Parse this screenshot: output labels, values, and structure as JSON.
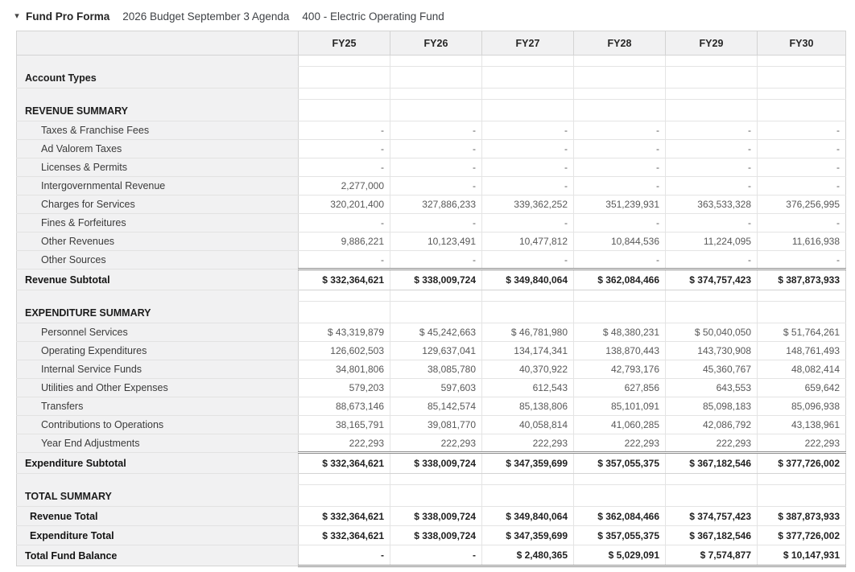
{
  "header": {
    "collapse_icon": "caret-down",
    "title": "Fund Pro Forma",
    "budget_name": "2026 Budget September 3 Agenda",
    "fund_name": "400 - Electric Operating Fund"
  },
  "colors": {
    "header_bg": "#f1f1f2",
    "grid_line_soft": "#e4e4e4",
    "grid_line_faint": "#e2e2e2",
    "grid_line_mid": "#d3d3d3",
    "double_line": "#8f8f8f"
  },
  "table": {
    "columns": [
      "FY25",
      "FY26",
      "FY27",
      "FY28",
      "FY29",
      "FY30"
    ],
    "rows": [
      {
        "type": "spacer",
        "label": "",
        "values": [
          "",
          "",
          "",
          "",
          "",
          ""
        ]
      },
      {
        "type": "section",
        "label": "Account Types",
        "values": [
          "",
          "",
          "",
          "",
          "",
          ""
        ]
      },
      {
        "type": "spacer",
        "label": "",
        "values": [
          "",
          "",
          "",
          "",
          "",
          ""
        ]
      },
      {
        "type": "section",
        "label": "REVENUE SUMMARY",
        "values": [
          "",
          "",
          "",
          "",
          "",
          ""
        ]
      },
      {
        "type": "data",
        "label": "Taxes & Franchise Fees",
        "values": [
          "-",
          "-",
          "-",
          "-",
          "-",
          "-"
        ]
      },
      {
        "type": "data",
        "label": "Ad Valorem Taxes",
        "values": [
          "-",
          "-",
          "-",
          "-",
          "-",
          "-"
        ]
      },
      {
        "type": "data",
        "label": "Licenses & Permits",
        "values": [
          "-",
          "-",
          "-",
          "-",
          "-",
          "-"
        ]
      },
      {
        "type": "data",
        "label": "Intergovernmental Revenue",
        "values": [
          "2,277,000",
          "-",
          "-",
          "-",
          "-",
          "-"
        ]
      },
      {
        "type": "data",
        "label": "Charges for Services",
        "values": [
          "320,201,400",
          "327,886,233",
          "339,362,252",
          "351,239,931",
          "363,533,328",
          "376,256,995"
        ]
      },
      {
        "type": "data",
        "label": "Fines & Forfeitures",
        "values": [
          "-",
          "-",
          "-",
          "-",
          "-",
          "-"
        ]
      },
      {
        "type": "data",
        "label": "Other Revenues",
        "values": [
          "9,886,221",
          "10,123,491",
          "10,477,812",
          "10,844,536",
          "11,224,095",
          "11,616,938"
        ]
      },
      {
        "type": "data",
        "label": "Other Sources",
        "values": [
          "-",
          "-",
          "-",
          "-",
          "-",
          "-"
        ]
      },
      {
        "type": "subtotal",
        "label": "Revenue Subtotal",
        "values": [
          "$ 332,364,621",
          "$ 338,009,724",
          "$ 349,840,064",
          "$ 362,084,466",
          "$ 374,757,423",
          "$ 387,873,933"
        ]
      },
      {
        "type": "spacer",
        "label": "",
        "values": [
          "",
          "",
          "",
          "",
          "",
          ""
        ]
      },
      {
        "type": "section",
        "label": "EXPENDITURE SUMMARY",
        "values": [
          "",
          "",
          "",
          "",
          "",
          ""
        ]
      },
      {
        "type": "data",
        "label": "Personnel Services",
        "values": [
          "$ 43,319,879",
          "$ 45,242,663",
          "$ 46,781,980",
          "$ 48,380,231",
          "$ 50,040,050",
          "$ 51,764,261"
        ]
      },
      {
        "type": "data",
        "label": "Operating Expenditures",
        "values": [
          "126,602,503",
          "129,637,041",
          "134,174,341",
          "138,870,443",
          "143,730,908",
          "148,761,493"
        ]
      },
      {
        "type": "data",
        "label": "Internal Service Funds",
        "values": [
          "34,801,806",
          "38,085,780",
          "40,370,922",
          "42,793,176",
          "45,360,767",
          "48,082,414"
        ]
      },
      {
        "type": "data",
        "label": "Utilities and Other Expenses",
        "values": [
          "579,203",
          "597,603",
          "612,543",
          "627,856",
          "643,553",
          "659,642"
        ]
      },
      {
        "type": "data",
        "label": "Transfers",
        "values": [
          "88,673,146",
          "85,142,574",
          "85,138,806",
          "85,101,091",
          "85,098,183",
          "85,096,938"
        ]
      },
      {
        "type": "data",
        "label": "Contributions to Operations",
        "values": [
          "38,165,791",
          "39,081,770",
          "40,058,814",
          "41,060,285",
          "42,086,792",
          "43,138,961"
        ]
      },
      {
        "type": "data",
        "label": "Year End Adjustments",
        "values": [
          "222,293",
          "222,293",
          "222,293",
          "222,293",
          "222,293",
          "222,293"
        ]
      },
      {
        "type": "subtotal",
        "label": "Expenditure Subtotal",
        "values": [
          "$ 332,364,621",
          "$ 338,009,724",
          "$ 347,359,699",
          "$ 357,055,375",
          "$ 367,182,546",
          "$ 377,726,002"
        ]
      },
      {
        "type": "spacer",
        "label": "",
        "values": [
          "",
          "",
          "",
          "",
          "",
          ""
        ]
      },
      {
        "type": "section",
        "label": "TOTAL SUMMARY",
        "values": [
          "",
          "",
          "",
          "",
          "",
          ""
        ]
      },
      {
        "type": "total",
        "label": "Revenue Total",
        "values": [
          "$ 332,364,621",
          "$ 338,009,724",
          "$ 349,840,064",
          "$ 362,084,466",
          "$ 374,757,423",
          "$ 387,873,933"
        ]
      },
      {
        "type": "total",
        "label": "Expenditure Total",
        "values": [
          "$ 332,364,621",
          "$ 338,009,724",
          "$ 347,359,699",
          "$ 357,055,375",
          "$ 367,182,546",
          "$ 377,726,002"
        ]
      },
      {
        "type": "grand",
        "label": "Total Fund Balance",
        "values": [
          "-",
          "-",
          "$ 2,480,365",
          "$ 5,029,091",
          "$ 7,574,877",
          "$ 10,147,931"
        ]
      }
    ]
  }
}
